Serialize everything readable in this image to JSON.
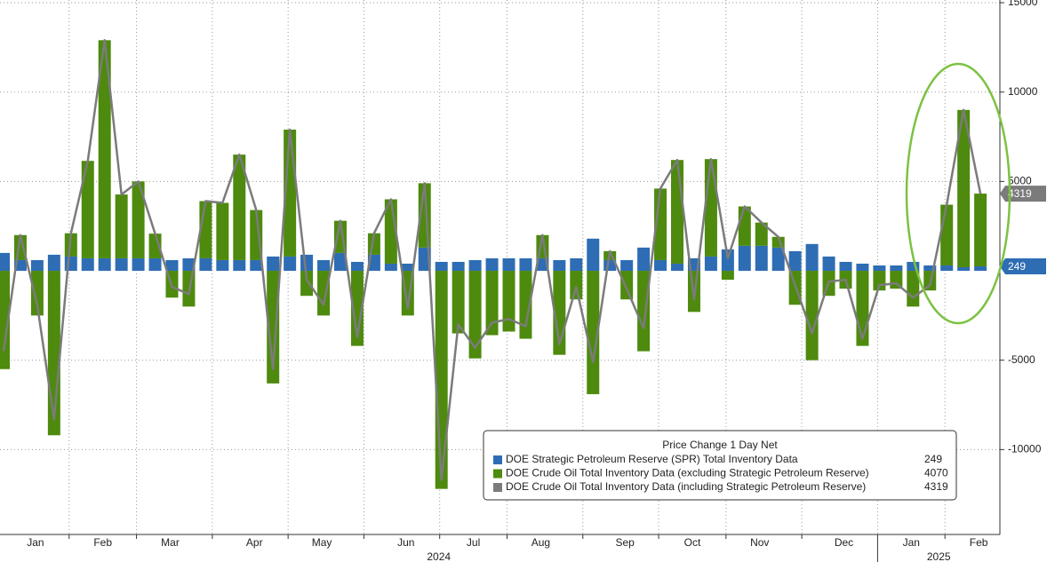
{
  "chart_data": {
    "type": "bar",
    "categories": [
      null,
      null,
      "Jan",
      null,
      null,
      null,
      "Feb",
      null,
      null,
      null,
      "Mar",
      null,
      null,
      null,
      null,
      "Apr",
      null,
      null,
      null,
      "May",
      null,
      null,
      null,
      null,
      "Jun",
      null,
      null,
      null,
      "Jul",
      null,
      null,
      null,
      "Aug",
      null,
      null,
      null,
      null,
      "Sep",
      null,
      null,
      null,
      "Oct",
      null,
      null,
      null,
      "Nov",
      null,
      null,
      null,
      null,
      "Dec",
      null,
      null,
      null,
      "Jan",
      null,
      null,
      null,
      "Feb"
    ],
    "x_groups": [
      "2024",
      "2025"
    ],
    "legend_title": "Price Change 1 Day Net",
    "series": [
      {
        "name": "DOE Strategic Petroleum Reserve (SPR) Total Inventory Data",
        "color": "#2e6db4",
        "values": [
          1000,
          600,
          600,
          900,
          800,
          700,
          700,
          700,
          700,
          700,
          600,
          700,
          700,
          600,
          600,
          600,
          800,
          800,
          900,
          600,
          1000,
          500,
          900,
          400,
          400,
          1300,
          500,
          500,
          600,
          700,
          700,
          700,
          700,
          600,
          700,
          1800,
          600,
          600,
          1300,
          600,
          400,
          700,
          800,
          1200,
          1400,
          1400,
          1300,
          1100,
          1500,
          800,
          500,
          400,
          300,
          300,
          500,
          300,
          300,
          200,
          249
        ]
      },
      {
        "name": "DOE Crude Oil Total Inventory Data (excluding Strategic Petroleum Reserve)",
        "color": "#4e8a0e",
        "values": [
          -5500,
          1400,
          -2500,
          -9200,
          1300,
          5450,
          12200,
          3570,
          4300,
          1380,
          -1500,
          -2000,
          3200,
          3200,
          5900,
          2800,
          -6300,
          7100,
          -1400,
          -2500,
          1800,
          -4200,
          1200,
          3600,
          -2500,
          3600,
          -12200,
          -3500,
          -4900,
          -3600,
          -3400,
          -3800,
          1300,
          -4700,
          -1600,
          -6900,
          500,
          -1600,
          -4500,
          4000,
          5800,
          -2300,
          5450,
          -500,
          2200,
          1300,
          600,
          -1900,
          -5000,
          -1400,
          -1000,
          -4200,
          -1100,
          -1000,
          -2000,
          -1100,
          3400,
          8800,
          4070
        ]
      },
      {
        "name": "DOE Crude Oil Total Inventory Data (including Strategic Petroleum Reserve)",
        "color": "#7b7b7b",
        "type": "line",
        "values": [
          -4500,
          2000,
          -1900,
          -8300,
          2100,
          6150,
          12900,
          4270,
          5000,
          2080,
          -900,
          -1300,
          3900,
          3800,
          6500,
          3400,
          -5500,
          7900,
          -500,
          -1900,
          2800,
          -3700,
          2100,
          4000,
          -2100,
          4900,
          -11700,
          -3000,
          -4300,
          -2900,
          -2700,
          -3100,
          2000,
          -4100,
          -900,
          -5100,
          1100,
          -1000,
          -3200,
          4600,
          6200,
          -1600,
          6250,
          700,
          3600,
          2700,
          1900,
          -800,
          -3500,
          -600,
          -500,
          -3800,
          -800,
          -700,
          -1500,
          -800,
          3700,
          9000,
          4319
        ]
      }
    ],
    "ylim": [
      -14750,
      15150
    ],
    "yticks": [
      15000,
      10000,
      5000,
      -5000,
      -10000
    ],
    "grid": true
  }
}
